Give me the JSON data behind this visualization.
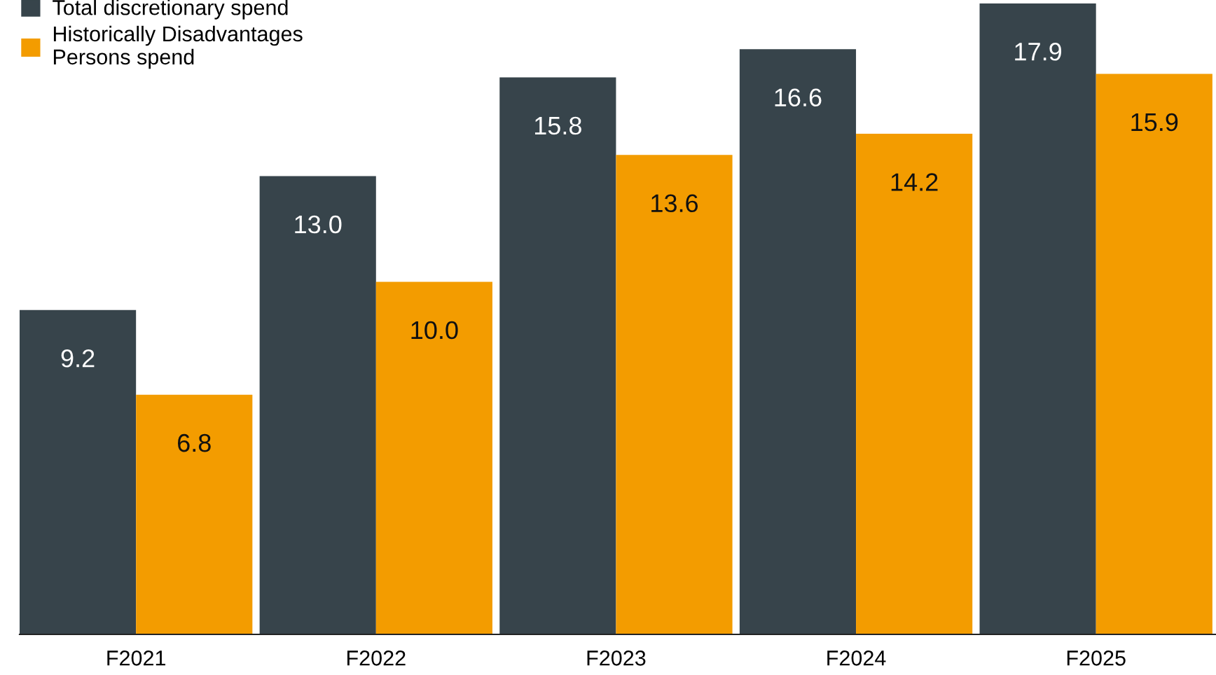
{
  "chart_data": {
    "type": "bar",
    "categories": [
      "F2021",
      "F2022",
      "F2023",
      "F2024",
      "F2025"
    ],
    "series": [
      {
        "name": "Total discretionary spend",
        "color": "#37444b",
        "values": [
          9.2,
          13.0,
          15.8,
          16.6,
          17.9
        ],
        "value_labels": [
          "9.2",
          "13.0",
          "15.8",
          "16.6",
          "17.9"
        ]
      },
      {
        "name": "Historically Disadvantages\nPersons spend",
        "color": "#f39c00",
        "values": [
          6.8,
          10.0,
          13.6,
          14.2,
          15.9
        ],
        "value_labels": [
          "6.8",
          "10.0",
          "13.6",
          "14.2",
          "15.9"
        ]
      }
    ],
    "legend": "top left",
    "grid": false
  }
}
